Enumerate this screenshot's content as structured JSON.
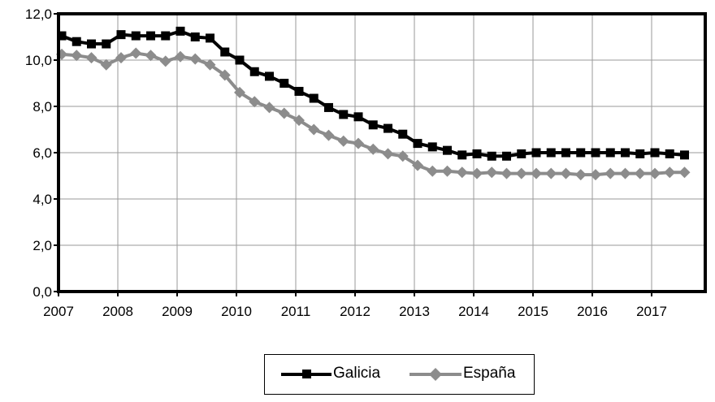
{
  "chart_data": {
    "type": "line",
    "title": "",
    "xlabel": "",
    "ylabel": "",
    "ylim": [
      0,
      12
    ],
    "y_ticks": [
      "0,0",
      "2,0",
      "4,0",
      "6,0",
      "8,0",
      "10,0",
      "12,0"
    ],
    "x_ticks": [
      "2007",
      "2008",
      "2009",
      "2010",
      "2011",
      "2012",
      "2013",
      "2014",
      "2015",
      "2016",
      "2017"
    ],
    "grid": true,
    "legend_position": "bottom",
    "x": [
      "2007T1",
      "2007T2",
      "2007T3",
      "2007T4",
      "2008T1",
      "2008T2",
      "2008T3",
      "2008T4",
      "2009T1",
      "2009T2",
      "2009T3",
      "2009T4",
      "2010T1",
      "2010T2",
      "2010T3",
      "2010T4",
      "2011T1",
      "2011T2",
      "2011T3",
      "2011T4",
      "2012T1",
      "2012T2",
      "2012T3",
      "2012T4",
      "2013T1",
      "2013T2",
      "2013T3",
      "2013T4",
      "2014T1",
      "2014T2",
      "2014T3",
      "2014T4",
      "2015T1",
      "2015T2",
      "2015T3",
      "2015T4",
      "2016T1",
      "2016T2",
      "2016T3",
      "2016T4",
      "2017T1",
      "2017T2",
      "2017T3"
    ],
    "series": [
      {
        "name": "Galicia",
        "color": "#000000",
        "marker": "square",
        "values": [
          11.05,
          10.8,
          10.7,
          10.7,
          11.1,
          11.05,
          11.05,
          11.05,
          11.25,
          11.0,
          10.95,
          10.35,
          10.0,
          9.5,
          9.3,
          9.0,
          8.65,
          8.35,
          7.95,
          7.65,
          7.55,
          7.2,
          7.05,
          6.8,
          6.4,
          6.25,
          6.1,
          5.9,
          5.95,
          5.85,
          5.85,
          5.95,
          6.0,
          6.0,
          6.0,
          6.0,
          6.0,
          6.0,
          6.0,
          5.95,
          6.0,
          5.95,
          5.9
        ]
      },
      {
        "name": "España",
        "color": "#8c8c8c",
        "marker": "diamond",
        "values": [
          10.25,
          10.2,
          10.1,
          9.8,
          10.1,
          10.3,
          10.2,
          9.95,
          10.15,
          10.05,
          9.8,
          9.35,
          8.6,
          8.2,
          7.95,
          7.7,
          7.4,
          7.0,
          6.75,
          6.5,
          6.4,
          6.15,
          5.95,
          5.85,
          5.45,
          5.2,
          5.2,
          5.15,
          5.1,
          5.15,
          5.1,
          5.1,
          5.1,
          5.1,
          5.1,
          5.05,
          5.05,
          5.1,
          5.1,
          5.1,
          5.1,
          5.15,
          5.15
        ]
      }
    ]
  }
}
